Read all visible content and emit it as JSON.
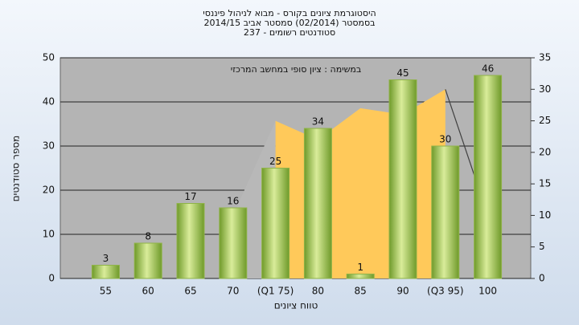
{
  "chart_data": {
    "type": "bar",
    "title": [
      "היסטוגרמת ציונים בקורס - מבוא לניהול פיננסי",
      "בסמסטר  (02/2014)  סמסטר אביב 2014/15",
      "סטודנטים רשומים - 237"
    ],
    "annotation": "במשימה : ציון סופי במחשב המרכזי",
    "x_label": "טווח ציונים",
    "y_label": "מספר סטודנטים",
    "categories": [
      "55",
      "60",
      "65",
      "70",
      "(Q1 75)",
      "80",
      "85",
      "90",
      "(Q3 95)",
      "100"
    ],
    "values": [
      3,
      8,
      17,
      16,
      25,
      34,
      1,
      45,
      30,
      46
    ],
    "color": "#8fb348",
    "ylim": [
      0,
      50
    ],
    "yticks": [
      0,
      10,
      20,
      30,
      40,
      50
    ],
    "y2lim": [
      0,
      35
    ],
    "y2ticks": [
      0,
      5,
      10,
      15,
      20,
      25,
      30,
      35
    ],
    "grid": true,
    "series": [
      {
        "type": "area",
        "axis": "y2",
        "color": "#b8b8b8",
        "values": [
          null,
          null,
          null,
          10,
          25,
          null,
          null,
          null,
          null,
          null
        ]
      },
      {
        "type": "area",
        "axis": "y2",
        "color": "#ffc95a",
        "values": [
          null,
          null,
          null,
          null,
          25,
          22,
          27,
          26,
          30,
          null
        ]
      },
      {
        "type": "line",
        "axis": "y2",
        "color": "#404040",
        "values": [
          null,
          null,
          null,
          null,
          null,
          null,
          null,
          null,
          30,
          10
        ]
      }
    ]
  }
}
